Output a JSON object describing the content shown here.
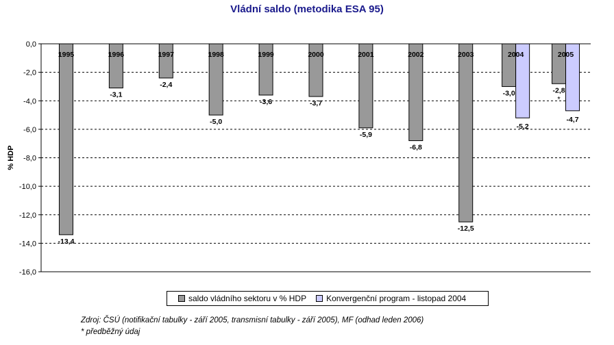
{
  "chart_data": {
    "type": "bar",
    "title": "Vládní saldo (metodika ESA 95)",
    "ylabel": "% HDP",
    "xlabel": "",
    "ylim": [
      -16,
      0
    ],
    "yticks": [
      0,
      -2,
      -4,
      -6,
      -8,
      -10,
      -12,
      -14,
      -16
    ],
    "ytick_labels": [
      "0,0",
      "-2,0",
      "-4,0",
      "-6,0",
      "-8,0",
      "-10,0",
      "-12,0",
      "-14,0",
      "-16,0"
    ],
    "grid": "horizontal dashed",
    "categories": [
      "1995",
      "1996",
      "1997",
      "1998",
      "1999",
      "2000",
      "2001",
      "2002",
      "2003",
      "2004",
      "2005"
    ],
    "series": [
      {
        "name": "saldo vládního sektoru v % HDP",
        "color": "#999999",
        "values": [
          -13.4,
          -3.1,
          -2.4,
          -5.0,
          -3.6,
          -3.7,
          -5.9,
          -6.8,
          -12.5,
          -3.0,
          -2.8
        ],
        "labels": [
          "-13,4",
          "-3,1",
          "-2,4",
          "-5,0",
          "-3,6",
          "-3,7",
          "-5,9",
          "-6,8",
          "-12,5",
          "-3,0",
          "-2,8"
        ]
      },
      {
        "name": "Konvergenční program - listopad 2004",
        "color": "#ccccff",
        "values": [
          null,
          null,
          null,
          null,
          null,
          null,
          null,
          null,
          null,
          -5.2,
          -4.7
        ],
        "labels": [
          "",
          "",
          "",
          "",
          "",
          "",
          "",
          "",
          "",
          "-5,2",
          "-4,7"
        ]
      }
    ],
    "annotations": [
      {
        "category": "2005",
        "text": "*"
      }
    ]
  },
  "source": {
    "line1": "Zdroj: ČSÚ (notifikační tabulky - září 2005, transmisní tabulky - září 2005), MF (odhad leden 2006)",
    "line2": "* předběžný údaj"
  }
}
